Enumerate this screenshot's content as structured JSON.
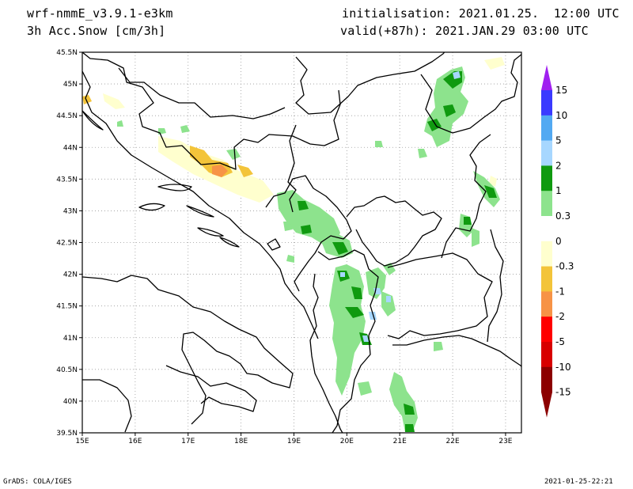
{
  "header": {
    "model": "wrf-nmmE_v3.9.1-e3km",
    "variable": "3h Acc.Snow [cm/3h]",
    "init": "initialisation: 2021.01.25.  12:00 UTC",
    "valid": "valid(+87h): 2021.JAN.29 03:00 UTC"
  },
  "footer": {
    "left": "GrADS: COLA/IGES",
    "right": "2021-01-25-22:21"
  },
  "map": {
    "lat_ticks": [
      "45.5N",
      "45N",
      "44.5N",
      "44N",
      "43.5N",
      "43N",
      "42.5N",
      "42N",
      "41.5N",
      "41N",
      "40.5N",
      "40N",
      "39.5N"
    ],
    "lon_ticks": [
      "15E",
      "16E",
      "17E",
      "18E",
      "19E",
      "20E",
      "21E",
      "22E",
      "23E"
    ],
    "lat_range": [
      39.5,
      45.5
    ],
    "lon_range": [
      15,
      23.3
    ]
  },
  "colorbar": {
    "labels": [
      "15",
      "10",
      "5",
      "2",
      "1",
      "0.3",
      "0",
      "-0.3",
      "-1",
      "-2",
      "-5",
      "-10",
      "-15"
    ],
    "colors": [
      "#a020f0",
      "#3a3aff",
      "#52a9f2",
      "#a7d7ff",
      "#109a10",
      "#8de38d",
      "#ffffff",
      "#ffffce",
      "#f3c43a",
      "#f79346",
      "#ff0000",
      "#d80000",
      "#8c0000"
    ]
  },
  "colors": {
    "light_green": "#8de38d",
    "dark_green": "#109a10",
    "light_blue": "#a7d7ff",
    "light_yellow": "#ffffce",
    "yellow": "#f3c43a",
    "orange": "#f79346"
  }
}
